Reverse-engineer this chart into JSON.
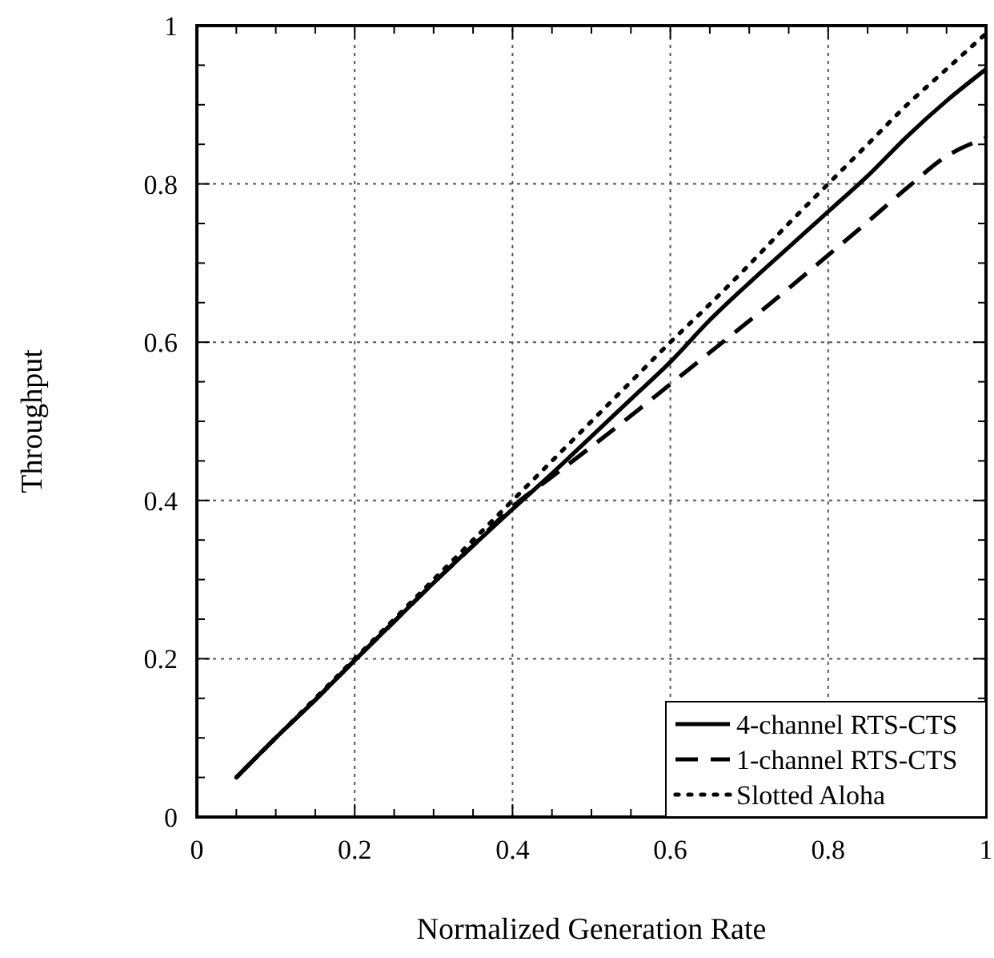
{
  "chart_data": {
    "type": "line",
    "xlabel": "Normalized Generation Rate",
    "ylabel": "Throughput",
    "x": [
      0.05,
      0.1,
      0.15,
      0.2,
      0.25,
      0.3,
      0.35,
      0.4,
      0.45,
      0.5,
      0.55,
      0.6,
      0.65,
      0.7,
      0.75,
      0.8,
      0.85,
      0.9,
      0.95,
      1
    ],
    "series": [
      {
        "name": "4-channel RTS-CTS",
        "color": "#000000",
        "line_style": "solid",
        "values": [
          0.05,
          0.1,
          0.148,
          0.198,
          0.247,
          0.296,
          0.343,
          0.389,
          0.434,
          0.481,
          0.528,
          0.575,
          0.628,
          0.675,
          0.72,
          0.765,
          0.81,
          0.86,
          0.905,
          0.945
        ]
      },
      {
        "name": "1-channel RTS-CTS",
        "color": "#000000",
        "line_style": "dashed",
        "values": [
          0.05,
          0.1,
          0.148,
          0.198,
          0.247,
          0.296,
          0.343,
          0.392,
          0.43,
          0.468,
          0.507,
          0.547,
          0.587,
          0.627,
          0.668,
          0.71,
          0.752,
          0.795,
          0.835,
          0.858
        ]
      },
      {
        "name": "Slotted Aloha",
        "color": "#000000",
        "line_style": "dotted",
        "values": [
          0.05,
          0.1,
          0.15,
          0.2,
          0.25,
          0.3,
          0.35,
          0.4,
          0.45,
          0.5,
          0.55,
          0.6,
          0.648,
          0.698,
          0.75,
          0.8,
          0.85,
          0.9,
          0.945,
          0.99
        ]
      }
    ],
    "xlim": [
      0,
      1
    ],
    "ylim": [
      0,
      1
    ],
    "xticks": [
      0,
      {
        "value": 0.05,
        "label": null
      },
      {
        "value": 0.1,
        "label": null
      },
      {
        "value": 0.15,
        "label": null
      },
      0.2,
      {
        "value": 0.25,
        "label": null
      },
      {
        "value": 0.3,
        "label": null
      },
      {
        "value": 0.35,
        "label": null
      },
      0.4,
      {
        "value": 0.45,
        "label": null
      },
      {
        "value": 0.5,
        "label": null
      },
      {
        "value": 0.55,
        "label": null
      },
      0.6,
      {
        "value": 0.65,
        "label": null
      },
      {
        "value": 0.7,
        "label": null
      },
      {
        "value": 0.75,
        "label": null
      },
      0.8,
      {
        "value": 0.85,
        "label": null
      },
      {
        "value": 0.9,
        "label": null
      },
      {
        "value": 0.95,
        "label": null
      },
      1
    ],
    "yticks": [
      0,
      {
        "value": 0.05,
        "label": null
      },
      {
        "value": 0.1,
        "label": null
      },
      {
        "value": 0.15,
        "label": null
      },
      0.2,
      {
        "value": 0.25,
        "label": null
      },
      {
        "value": 0.3,
        "label": null
      },
      {
        "value": 0.35,
        "label": null
      },
      0.4,
      {
        "value": 0.45,
        "label": null
      },
      {
        "value": 0.5,
        "label": null
      },
      {
        "value": 0.55,
        "label": null
      },
      0.6,
      {
        "value": 0.65,
        "label": null
      },
      {
        "value": 0.7,
        "label": null
      },
      {
        "value": 0.75,
        "label": null
      },
      0.8,
      {
        "value": 0.85,
        "label": null
      },
      {
        "value": 0.9,
        "label": null
      },
      {
        "value": 0.95,
        "label": null
      },
      1
    ],
    "grid": true,
    "legend": "bottom right"
  }
}
